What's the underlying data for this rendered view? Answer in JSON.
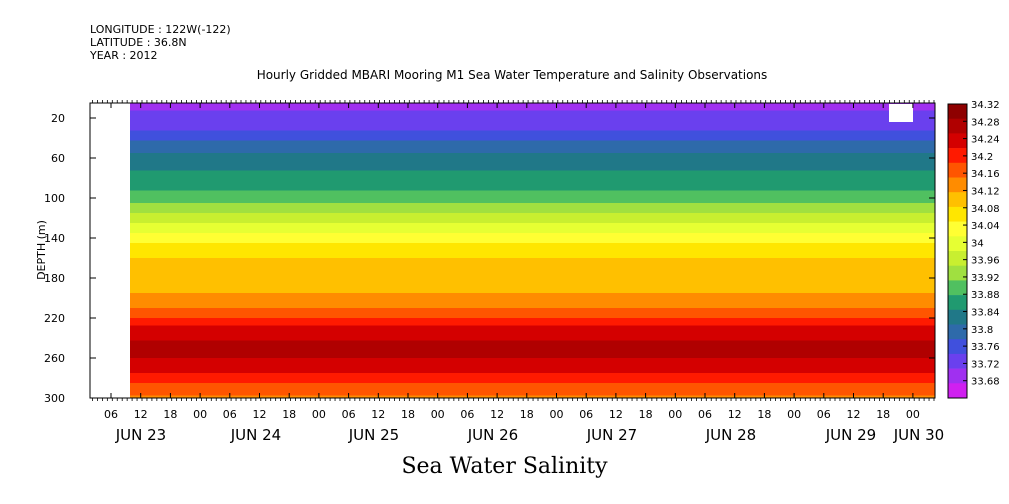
{
  "header": {
    "longitude": "LONGITUDE : 122W(-122)",
    "latitude": "LATITUDE : 36.8N",
    "year": "YEAR : 2012"
  },
  "chart_data": {
    "type": "heatmap",
    "title": "Hourly Gridded MBARI Mooring M1 Sea Water Temperature and Salinity Observations",
    "bottom_title": "Sea Water Salinity",
    "ylabel": "DEPTH (m)",
    "ylim": [
      300,
      5
    ],
    "y_ticks": [
      20,
      60,
      100,
      140,
      180,
      220,
      260,
      300
    ],
    "x_ticks_hours": [
      "06",
      "12",
      "18",
      "00",
      "06",
      "12",
      "18",
      "00",
      "06",
      "12",
      "18",
      "00",
      "06",
      "12",
      "18",
      "00",
      "06",
      "12",
      "18",
      "00",
      "06",
      "12",
      "18",
      "00",
      "06",
      "12",
      "18",
      "00"
    ],
    "x_date_labels": [
      "JUN 23",
      "JUN 24",
      "JUN 25",
      "JUN 26",
      "JUN 27",
      "JUN 28",
      "JUN 29",
      "JUN 30"
    ],
    "colorbar": {
      "labels": [
        "34.32",
        "34.28",
        "34.24",
        "34.2",
        "34.16",
        "34.12",
        "34.08",
        "34.04",
        "34",
        "33.96",
        "33.92",
        "33.88",
        "33.84",
        "33.8",
        "33.76",
        "33.72",
        "33.68"
      ],
      "colors": [
        "#8e0000",
        "#b00000",
        "#d40000",
        "#ff1a00",
        "#ff5500",
        "#ff8c00",
        "#ffc000",
        "#ffe600",
        "#ffff33",
        "#e6ff33",
        "#c8ef30",
        "#a0e040",
        "#50c060",
        "#209a70",
        "#207888",
        "#2e6aaa",
        "#4050dd",
        "#6a40ee",
        "#a030f0",
        "#d020f0"
      ]
    },
    "depth_profile": [
      {
        "depth": 10,
        "salinity": 33.74
      },
      {
        "depth": 30,
        "salinity": 33.77
      },
      {
        "depth": 50,
        "salinity": 33.83
      },
      {
        "depth": 70,
        "salinity": 33.87
      },
      {
        "depth": 90,
        "salinity": 33.9
      },
      {
        "depth": 110,
        "salinity": 33.95
      },
      {
        "depth": 130,
        "salinity": 34.02
      },
      {
        "depth": 150,
        "salinity": 34.08
      },
      {
        "depth": 170,
        "salinity": 34.11
      },
      {
        "depth": 190,
        "salinity": 34.12
      },
      {
        "depth": 210,
        "salinity": 34.16
      },
      {
        "depth": 230,
        "salinity": 34.23
      },
      {
        "depth": 250,
        "salinity": 34.27
      },
      {
        "depth": 270,
        "salinity": 34.24
      },
      {
        "depth": 290,
        "salinity": 34.18
      },
      {
        "depth": 300,
        "salinity": 34.15
      }
    ]
  }
}
